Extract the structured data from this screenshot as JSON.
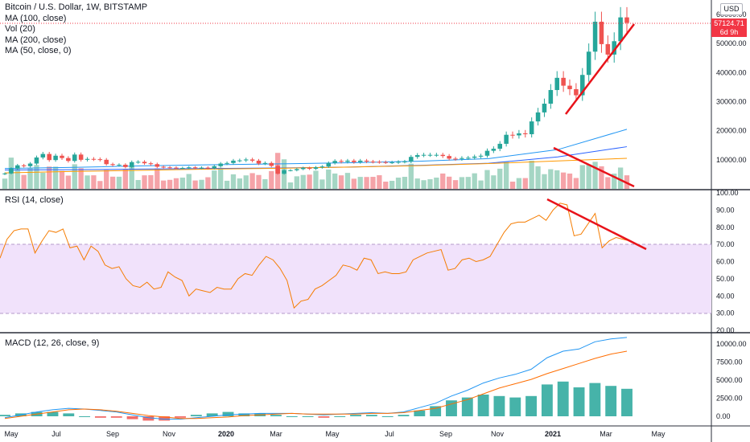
{
  "header": {
    "title": "Bitcoin / U.S. Dollar, 1W, BITSTAMP",
    "indicators": [
      "MA (100, close)",
      "Vol (20)",
      "MA (200, close)",
      "MA (50, close, 0)"
    ],
    "currency": "USD",
    "last_price": "57124.71",
    "countdown": "6d 9h"
  },
  "panes": {
    "rsi_label": "RSI (14, close)",
    "macd_label": "MACD (12, 26, close, 9)"
  },
  "colors": {
    "up": "#26a69a",
    "down": "#ef5350",
    "vol_up": "#a5d6c4",
    "vol_down": "#f5a3a8",
    "rsi_line": "#f57c00",
    "rsi_band": "#f1e2fb",
    "macd_line": "#2196f3",
    "signal_line": "#ff6d00",
    "ma100": "#2196f3",
    "ma200": "#2962ff",
    "ma50": "#ff9800",
    "trend": "#e8131a",
    "price_tag": "#f23645"
  },
  "chart_data": [
    {
      "type": "candlestick",
      "title": "Bitcoin / U.S. Dollar, 1W, BITSTAMP",
      "x_ticks": [
        "May",
        "Jul",
        "Sep",
        "Nov",
        "2020",
        "Mar",
        "May",
        "Jul",
        "Sep",
        "Nov",
        "2021",
        "Mar",
        "May"
      ],
      "y_ticks": [
        "10000.00",
        "20000.00",
        "30000.00",
        "40000.00",
        "50000.00",
        "60000.00"
      ],
      "ylim": [
        0,
        62000
      ],
      "weekly_close": [
        5300,
        7000,
        8100,
        7800,
        8700,
        10800,
        12000,
        9900,
        11400,
        10600,
        9600,
        11800,
        10000,
        10300,
        10200,
        10000,
        8500,
        8200,
        8300,
        7500,
        9200,
        9300,
        8800,
        8500,
        7600,
        7400,
        7300,
        7200,
        7200,
        7400,
        7200,
        7300,
        7100,
        7800,
        8700,
        8900,
        9700,
        9800,
        10100,
        9700,
        8700,
        8900,
        7900,
        5200,
        6400,
        6400,
        6800,
        7200,
        6900,
        7400,
        7700,
        8900,
        9600,
        9300,
        9700,
        9200,
        9700,
        9400,
        9300,
        9200,
        9100,
        9100,
        9300,
        9400,
        11000,
        11600,
        11700,
        11700,
        11700,
        11300,
        10400,
        10300,
        10600,
        10700,
        11100,
        11400,
        13100,
        13800,
        15500,
        18600,
        18400,
        19100,
        18800,
        23200,
        26300,
        29300,
        34000,
        38200,
        35500,
        34300,
        32200,
        39200,
        47200,
        57500,
        49800,
        46200,
        50800,
        59000,
        57124.71
      ],
      "trendline": {
        "from": [
          25500,
          "2021 Jan"
        ],
        "to": [
          57000,
          "2021 Mar"
        ]
      },
      "moving_averages": [
        {
          "name": "MA (100, close)",
          "values": [
            7000,
            7400,
            7900,
            8300,
            8600,
            9000,
            9500,
            10400,
            13500,
            20500
          ]
        },
        {
          "name": "MA (200, close)",
          "values": [
            6500,
            6600,
            6800,
            7000,
            7200,
            7500,
            8100,
            8800,
            11000,
            14500
          ]
        },
        {
          "name": "MA (50, close, 0)",
          "values": [
            5500,
            6000,
            6400,
            6800,
            7100,
            7500,
            8000,
            8700,
            9600,
            10500
          ]
        }
      ]
    },
    {
      "type": "bar",
      "title": "Vol (20)",
      "note": "volume histogram shown in lower part of main pane, tinted by candle direction"
    },
    {
      "type": "line",
      "title": "RSI (14, close)",
      "y_ticks": [
        "20.00",
        "30.00",
        "40.00",
        "50.00",
        "60.00",
        "70.00",
        "80.00",
        "90.00",
        "100.00"
      ],
      "ylim": [
        20,
        100
      ],
      "band": [
        30,
        70
      ],
      "values": [
        62,
        73,
        78,
        79,
        79,
        65,
        72,
        78,
        77,
        79,
        68,
        69,
        61,
        69,
        66,
        58,
        56,
        57,
        50,
        46,
        45,
        48,
        44,
        45,
        54,
        51,
        49,
        40,
        44,
        43,
        42,
        45,
        44,
        44,
        50,
        53,
        52,
        58,
        63,
        61,
        56,
        49,
        33,
        37,
        38,
        44,
        46,
        49,
        52,
        58,
        57,
        55,
        62,
        61,
        53,
        54,
        53,
        53,
        54,
        61,
        63,
        65,
        66,
        67,
        55,
        56,
        61,
        62,
        60,
        61,
        63,
        70,
        77,
        82,
        83,
        83,
        85,
        87,
        84,
        90,
        94,
        93,
        75,
        76,
        82,
        88,
        68,
        72,
        74,
        73,
        72
      ],
      "trendline": {
        "from": [
          94,
          "2021 Jan"
        ],
        "to": [
          67,
          "2021 Apr"
        ]
      }
    },
    {
      "type": "line",
      "title": "MACD (12, 26, close, 9)",
      "y_ticks": [
        "0.00",
        "2500.00",
        "5000.00",
        "7500.00",
        "10000.00"
      ],
      "ylim": [
        -1000,
        11500
      ],
      "series": [
        {
          "name": "MACD",
          "values": [
            -200,
            200,
            600,
            900,
            1100,
            1000,
            800,
            600,
            200,
            -200,
            -400,
            -400,
            -200,
            0,
            200,
            300,
            400,
            400,
            400,
            300,
            200,
            300,
            400,
            500,
            400,
            600,
            1200,
            1800,
            2800,
            3600,
            4600,
            5300,
            5800,
            6500,
            8100,
            9000,
            9300,
            10300,
            10700,
            10900
          ]
        },
        {
          "name": "Signal",
          "values": [
            -300,
            0,
            300,
            600,
            900,
            1000,
            900,
            700,
            400,
            100,
            -100,
            -300,
            -300,
            -200,
            -100,
            100,
            200,
            300,
            400,
            300,
            300,
            300,
            300,
            400,
            400,
            500,
            800,
            1100,
            1700,
            2300,
            3100,
            3900,
            4500,
            5100,
            5900,
            6600,
            7300,
            8000,
            8600,
            9000
          ]
        }
      ]
    }
  ]
}
